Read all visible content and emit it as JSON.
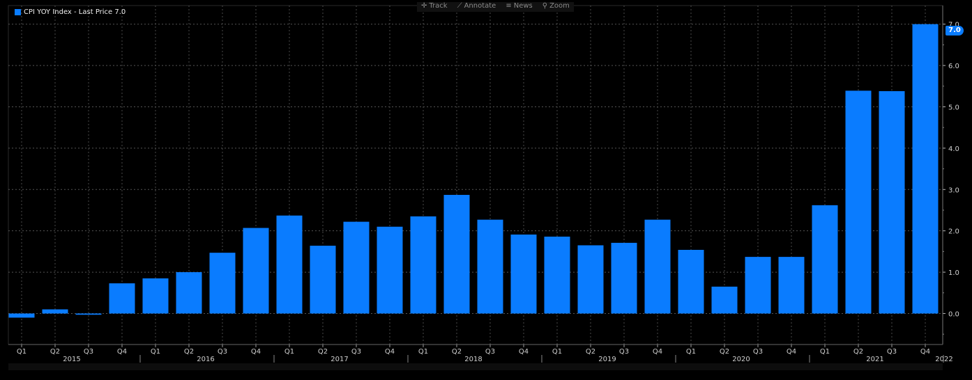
{
  "toolbar": {
    "items": [
      {
        "icon": "crosshair-icon",
        "glyph": "✛",
        "label": "Track"
      },
      {
        "icon": "pencil-icon",
        "glyph": "⟋",
        "label": "Annotate"
      },
      {
        "icon": "news-icon",
        "glyph": "≡",
        "label": "News"
      },
      {
        "icon": "magnifier-icon",
        "glyph": "⚲",
        "label": "Zoom"
      }
    ]
  },
  "legend": {
    "label": "CPI YOY Index - Last Price 7.0",
    "color": "#0a7cff"
  },
  "last_badge": {
    "value": "7.0",
    "color": "#0a7cff"
  },
  "chart_data": {
    "type": "bar",
    "categories": [
      "Q1",
      "Q2",
      "Q3",
      "Q4",
      "Q1",
      "Q2",
      "Q3",
      "Q4",
      "Q1",
      "Q2",
      "Q3",
      "Q4",
      "Q1",
      "Q2",
      "Q3",
      "Q4",
      "Q1",
      "Q2",
      "Q3",
      "Q4",
      "Q1",
      "Q2",
      "Q3",
      "Q4",
      "Q1",
      "Q2",
      "Q3",
      "Q4"
    ],
    "years": [
      {
        "label": "2015",
        "start": 0,
        "end": 3
      },
      {
        "label": "2016",
        "start": 4,
        "end": 7
      },
      {
        "label": "2017",
        "start": 8,
        "end": 11
      },
      {
        "label": "2018",
        "start": 12,
        "end": 15
      },
      {
        "label": "2019",
        "start": 16,
        "end": 19
      },
      {
        "label": "2020",
        "start": 20,
        "end": 23
      },
      {
        "label": "2021",
        "start": 24,
        "end": 27
      },
      {
        "label": "2022",
        "start": 28,
        "end": 28
      }
    ],
    "series": [
      {
        "name": "CPI YOY Index",
        "values": [
          -0.1,
          0.1,
          -0.03,
          0.73,
          0.85,
          1.0,
          1.47,
          2.07,
          2.37,
          1.64,
          2.22,
          2.1,
          2.35,
          2.87,
          2.27,
          1.91,
          1.86,
          1.65,
          1.71,
          2.27,
          1.54,
          0.65,
          1.37,
          1.37,
          2.62,
          5.39,
          5.38,
          7.0
        ]
      }
    ],
    "ylim": [
      -0.75,
      7.45
    ],
    "yticks": [
      0.0,
      1.0,
      2.0,
      3.0,
      4.0,
      5.0,
      6.0,
      7.0
    ],
    "ytick_labels": [
      "0.0",
      "1.0",
      "2.0",
      "3.0",
      "4.0",
      "5.0",
      "6.0",
      "7.0"
    ],
    "grid": true,
    "bar_color": "#0a7cff"
  }
}
